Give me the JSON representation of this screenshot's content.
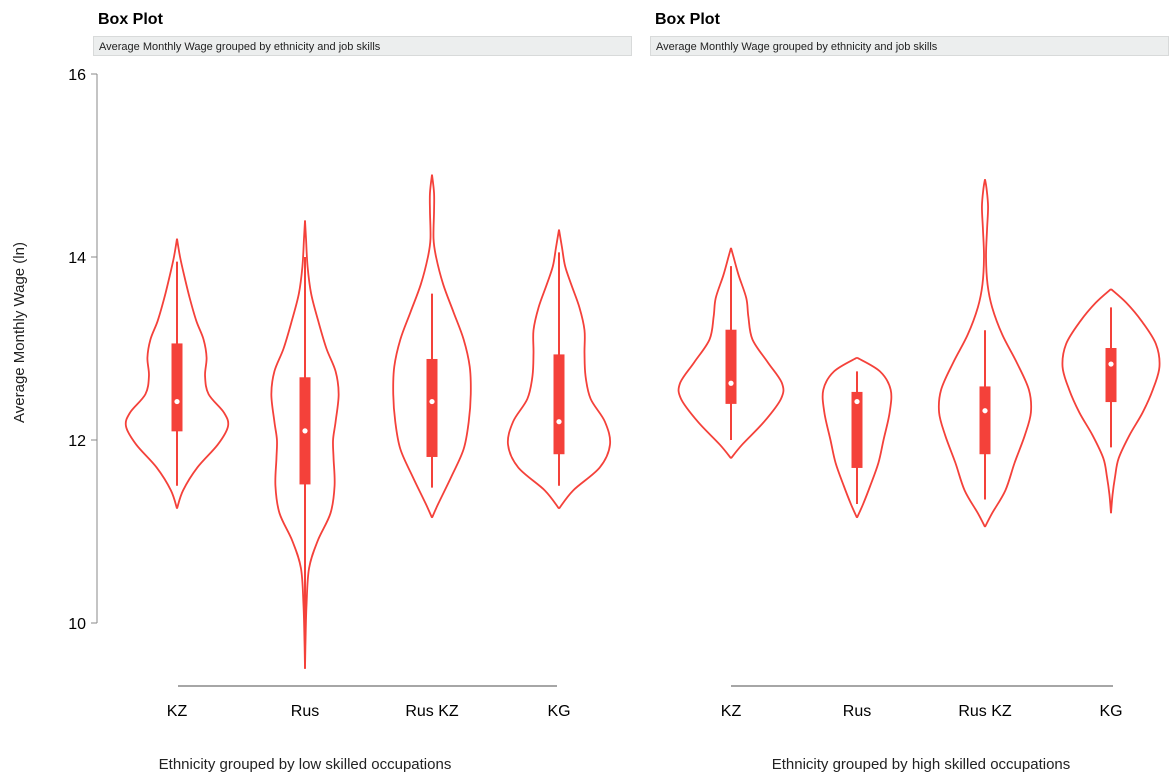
{
  "chart_data": [
    {
      "type": "violin",
      "title": "Box Plot",
      "subtitle": "Average Monthly Wage grouped by ethnicity and job skills",
      "xlabel": "Ethnicity grouped by low skilled occupations",
      "ylabel": "Average Monthly Wage (ln)",
      "ylim": [
        9.5,
        16
      ],
      "yticks": [
        10,
        12,
        14,
        16
      ],
      "grid": false,
      "color": "#f4413a",
      "categories": [
        "KZ",
        "Rus",
        "Rus KZ",
        "KG"
      ],
      "series": [
        {
          "category": "KZ",
          "min": 11.5,
          "q1": 12.1,
          "median": 12.42,
          "q3": 13.05,
          "max": 13.95,
          "density_range": [
            11.25,
            14.2
          ],
          "density": [
            [
              11.25,
              0.0
            ],
            [
              11.45,
              0.12
            ],
            [
              11.7,
              0.4
            ],
            [
              11.95,
              0.8
            ],
            [
              12.15,
              1.0
            ],
            [
              12.3,
              0.92
            ],
            [
              12.5,
              0.62
            ],
            [
              12.7,
              0.55
            ],
            [
              12.9,
              0.58
            ],
            [
              13.1,
              0.52
            ],
            [
              13.3,
              0.38
            ],
            [
              13.55,
              0.25
            ],
            [
              13.8,
              0.14
            ],
            [
              14.0,
              0.06
            ],
            [
              14.2,
              0.0
            ]
          ]
        },
        {
          "category": "Rus",
          "min": 10.0,
          "q1": 11.52,
          "median": 12.1,
          "q3": 12.68,
          "max": 14.0,
          "density_range": [
            9.5,
            14.4
          ],
          "density": [
            [
              9.5,
              0.0
            ],
            [
              9.8,
              0.01
            ],
            [
              10.2,
              0.03
            ],
            [
              10.6,
              0.08
            ],
            [
              10.9,
              0.25
            ],
            [
              11.2,
              0.5
            ],
            [
              11.5,
              0.58
            ],
            [
              11.8,
              0.56
            ],
            [
              12.0,
              0.55
            ],
            [
              12.2,
              0.6
            ],
            [
              12.5,
              0.66
            ],
            [
              12.75,
              0.6
            ],
            [
              13.0,
              0.42
            ],
            [
              13.3,
              0.26
            ],
            [
              13.6,
              0.12
            ],
            [
              13.9,
              0.05
            ],
            [
              14.2,
              0.02
            ],
            [
              14.4,
              0.0
            ]
          ]
        },
        {
          "category": "Rus KZ",
          "min": 11.48,
          "q1": 11.82,
          "median": 12.42,
          "q3": 12.88,
          "max": 13.6,
          "density_range": [
            11.15,
            14.9
          ],
          "density": [
            [
              11.15,
              0.0
            ],
            [
              11.3,
              0.12
            ],
            [
              11.6,
              0.38
            ],
            [
              11.9,
              0.62
            ],
            [
              12.2,
              0.72
            ],
            [
              12.5,
              0.76
            ],
            [
              12.8,
              0.74
            ],
            [
              13.1,
              0.62
            ],
            [
              13.4,
              0.42
            ],
            [
              13.7,
              0.22
            ],
            [
              14.0,
              0.08
            ],
            [
              14.2,
              0.03
            ],
            [
              14.5,
              0.04
            ],
            [
              14.7,
              0.04
            ],
            [
              14.9,
              0.0
            ]
          ]
        },
        {
          "category": "KG",
          "min": 11.5,
          "q1": 11.85,
          "median": 12.2,
          "q3": 12.93,
          "max": 14.05,
          "density_range": [
            11.25,
            14.3
          ],
          "density": [
            [
              11.25,
              0.0
            ],
            [
              11.45,
              0.28
            ],
            [
              11.7,
              0.8
            ],
            [
              11.95,
              1.0
            ],
            [
              12.2,
              0.9
            ],
            [
              12.45,
              0.62
            ],
            [
              12.7,
              0.52
            ],
            [
              12.95,
              0.5
            ],
            [
              13.2,
              0.5
            ],
            [
              13.45,
              0.4
            ],
            [
              13.7,
              0.24
            ],
            [
              13.9,
              0.12
            ],
            [
              14.1,
              0.06
            ],
            [
              14.3,
              0.0
            ]
          ]
        }
      ]
    },
    {
      "type": "violin",
      "title": "Box Plot",
      "subtitle": "Average Monthly Wage grouped by ethnicity and job skills",
      "xlabel": "Ethnicity grouped by high skilled occupations",
      "ylabel": "",
      "ylim": [
        9.5,
        16
      ],
      "yticks": [],
      "grid": false,
      "color": "#f4413a",
      "categories": [
        "KZ",
        "Rus",
        "Rus KZ",
        "KG"
      ],
      "series": [
        {
          "category": "KZ",
          "min": 12.0,
          "q1": 12.4,
          "median": 12.62,
          "q3": 13.2,
          "max": 13.9,
          "density_range": [
            11.8,
            14.1
          ],
          "density": [
            [
              11.8,
              0.0
            ],
            [
              11.95,
              0.22
            ],
            [
              12.2,
              0.65
            ],
            [
              12.45,
              0.98
            ],
            [
              12.62,
              1.0
            ],
            [
              12.85,
              0.72
            ],
            [
              13.1,
              0.42
            ],
            [
              13.35,
              0.34
            ],
            [
              13.55,
              0.3
            ],
            [
              13.8,
              0.15
            ],
            [
              14.0,
              0.05
            ],
            [
              14.1,
              0.0
            ]
          ]
        },
        {
          "category": "Rus",
          "min": 11.3,
          "q1": 11.7,
          "median": 12.42,
          "q3": 12.52,
          "max": 12.75,
          "density_range": [
            11.15,
            12.9
          ],
          "density": [
            [
              11.15,
              0.0
            ],
            [
              11.3,
              0.12
            ],
            [
              11.5,
              0.26
            ],
            [
              11.75,
              0.42
            ],
            [
              12.0,
              0.52
            ],
            [
              12.3,
              0.64
            ],
            [
              12.55,
              0.66
            ],
            [
              12.75,
              0.45
            ],
            [
              12.9,
              0.0
            ]
          ]
        },
        {
          "category": "Rus KZ",
          "min": 11.35,
          "q1": 11.85,
          "median": 12.32,
          "q3": 12.58,
          "max": 13.2,
          "density_range": [
            11.05,
            14.85
          ],
          "density": [
            [
              11.05,
              0.0
            ],
            [
              11.2,
              0.14
            ],
            [
              11.45,
              0.4
            ],
            [
              11.75,
              0.58
            ],
            [
              12.05,
              0.78
            ],
            [
              12.3,
              0.9
            ],
            [
              12.55,
              0.86
            ],
            [
              12.85,
              0.62
            ],
            [
              13.15,
              0.34
            ],
            [
              13.45,
              0.14
            ],
            [
              13.7,
              0.05
            ],
            [
              14.0,
              0.02
            ],
            [
              14.3,
              0.04
            ],
            [
              14.55,
              0.06
            ],
            [
              14.75,
              0.03
            ],
            [
              14.85,
              0.0
            ]
          ]
        },
        {
          "category": "KG",
          "min": 11.92,
          "q1": 12.42,
          "median": 12.83,
          "q3": 13.0,
          "max": 13.45,
          "density_range": [
            11.2,
            13.65
          ],
          "density": [
            [
              11.2,
              0.0
            ],
            [
              11.4,
              0.03
            ],
            [
              11.6,
              0.08
            ],
            [
              11.8,
              0.15
            ],
            [
              12.05,
              0.36
            ],
            [
              12.3,
              0.62
            ],
            [
              12.55,
              0.82
            ],
            [
              12.8,
              0.95
            ],
            [
              13.05,
              0.88
            ],
            [
              13.3,
              0.6
            ],
            [
              13.5,
              0.3
            ],
            [
              13.65,
              0.0
            ]
          ]
        }
      ]
    }
  ]
}
